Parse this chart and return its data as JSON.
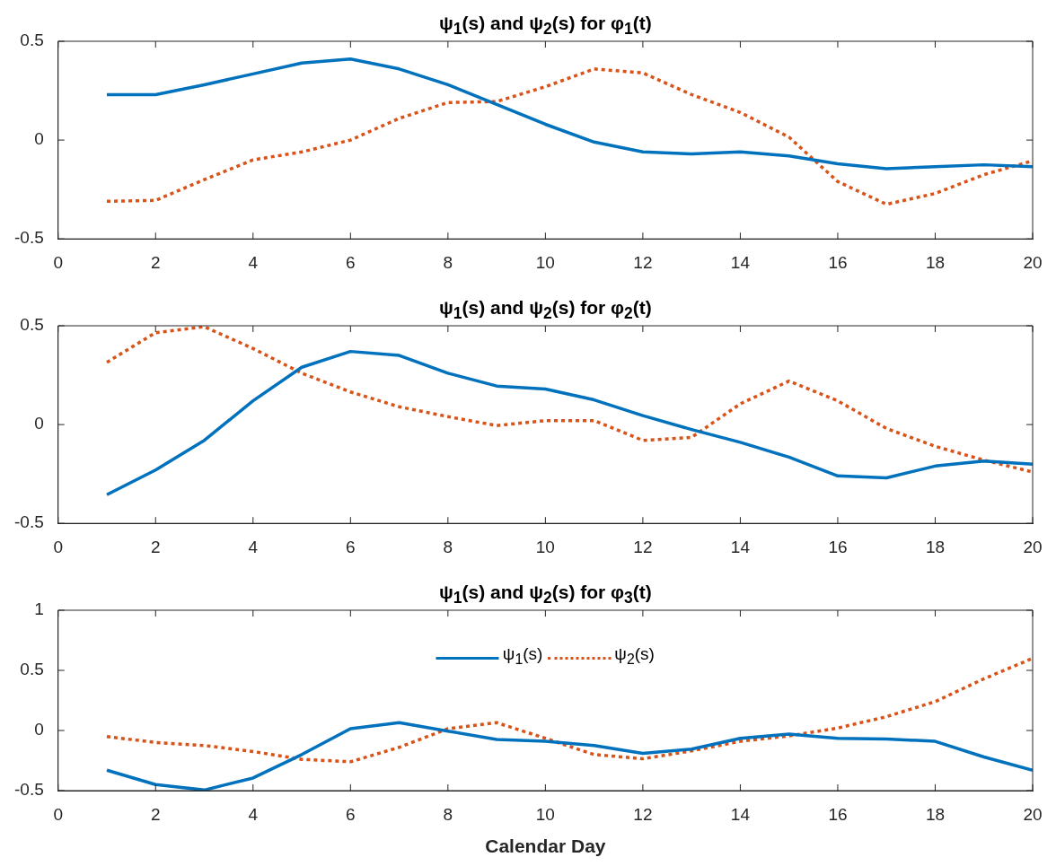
{
  "chart_data": [
    {
      "type": "line",
      "title": "ψ$_{1}$(s) and ψ$_{2}$(s) for φ$_{1}$(t)",
      "x": [
        1,
        2,
        3,
        4,
        5,
        6,
        7,
        8,
        9,
        10,
        11,
        12,
        13,
        14,
        15,
        16,
        17,
        18,
        19,
        20
      ],
      "xlim": [
        0,
        20
      ],
      "xticks": [
        0,
        2,
        4,
        6,
        8,
        10,
        12,
        14,
        16,
        18,
        20
      ],
      "ylim": [
        -0.5,
        0.5
      ],
      "yticks": [
        -0.5,
        0,
        0.5
      ],
      "series": [
        {
          "color": "#0072bd",
          "line_style": "solid",
          "values": [
            0.23,
            0.23,
            0.28,
            0.335,
            0.39,
            0.41,
            0.36,
            0.28,
            0.18,
            0.08,
            -0.01,
            -0.06,
            -0.07,
            -0.06,
            -0.08,
            -0.12,
            -0.145,
            -0.135,
            -0.125,
            -0.135
          ]
        },
        {
          "color": "#d95319",
          "line_style": "dotted",
          "values": [
            -0.31,
            -0.305,
            -0.2,
            -0.1,
            -0.06,
            0,
            0.11,
            0.19,
            0.195,
            0.27,
            0.36,
            0.34,
            0.23,
            0.14,
            0.015,
            -0.21,
            -0.325,
            -0.27,
            -0.175,
            -0.105
          ]
        }
      ]
    },
    {
      "type": "line",
      "title": "ψ$_{1}$(s) and ψ$_{2}$(s) for φ$_{2}$(t)",
      "x": [
        1,
        2,
        3,
        4,
        5,
        6,
        7,
        8,
        9,
        10,
        11,
        12,
        13,
        14,
        15,
        16,
        17,
        18,
        19,
        20
      ],
      "xlim": [
        0,
        20
      ],
      "xticks": [
        0,
        2,
        4,
        6,
        8,
        10,
        12,
        14,
        16,
        18,
        20
      ],
      "ylim": [
        -0.5,
        0.5
      ],
      "yticks": [
        -0.5,
        0,
        0.5
      ],
      "series": [
        {
          "color": "#0072bd",
          "line_style": "solid",
          "values": [
            -0.355,
            -0.23,
            -0.08,
            0.12,
            0.29,
            0.37,
            0.35,
            0.26,
            0.195,
            0.18,
            0.125,
            0.045,
            -0.025,
            -0.09,
            -0.165,
            -0.26,
            -0.27,
            -0.21,
            -0.185,
            -0.2
          ]
        },
        {
          "color": "#d95319",
          "line_style": "dotted",
          "values": [
            0.315,
            0.465,
            0.495,
            0.385,
            0.26,
            0.165,
            0.09,
            0.04,
            -0.005,
            0.02,
            0.02,
            -0.08,
            -0.065,
            0.105,
            0.22,
            0.12,
            -0.02,
            -0.11,
            -0.18,
            -0.24
          ]
        }
      ]
    },
    {
      "type": "line",
      "title": "ψ$_{1}$(s) and ψ$_{2}$(s) for φ$_{3}$(t)",
      "xlabel": "Calendar Day",
      "legend": "top",
      "x": [
        1,
        2,
        3,
        4,
        5,
        6,
        7,
        8,
        9,
        10,
        11,
        12,
        13,
        14,
        15,
        16,
        17,
        18,
        19,
        20
      ],
      "xlim": [
        0,
        20
      ],
      "xticks": [
        0,
        2,
        4,
        6,
        8,
        10,
        12,
        14,
        16,
        18,
        20
      ],
      "ylim": [
        -0.5,
        1
      ],
      "yticks": [
        -0.5,
        0,
        0.5,
        1
      ],
      "series": [
        {
          "name": "ψ$_{1}$(s)",
          "color": "#0072bd",
          "line_style": "solid",
          "values": [
            -0.33,
            -0.45,
            -0.495,
            -0.395,
            -0.2,
            0.015,
            0.065,
            -0.005,
            -0.075,
            -0.09,
            -0.125,
            -0.19,
            -0.155,
            -0.065,
            -0.03,
            -0.065,
            -0.07,
            -0.09,
            -0.22,
            -0.33
          ]
        },
        {
          "name": "ψ$_{2}$(s)",
          "color": "#d95319",
          "line_style": "dotted",
          "values": [
            -0.05,
            -0.1,
            -0.125,
            -0.175,
            -0.24,
            -0.26,
            -0.14,
            0.015,
            0.065,
            -0.065,
            -0.2,
            -0.235,
            -0.17,
            -0.09,
            -0.045,
            0.02,
            0.115,
            0.24,
            0.43,
            0.6
          ]
        }
      ]
    }
  ]
}
